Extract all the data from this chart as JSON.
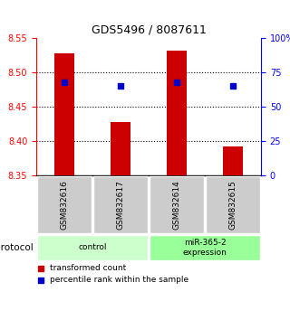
{
  "title": "GDS5496 / 8087611",
  "samples": [
    "GSM832616",
    "GSM832617",
    "GSM832614",
    "GSM832615"
  ],
  "bar_values": [
    8.528,
    8.428,
    8.532,
    8.392
  ],
  "percentile_values": [
    68,
    65,
    68,
    65
  ],
  "ylim_left": [
    8.35,
    8.55
  ],
  "ylim_right": [
    0,
    100
  ],
  "yticks_left": [
    8.35,
    8.4,
    8.45,
    8.5,
    8.55
  ],
  "yticks_right": [
    0,
    25,
    50,
    75,
    100
  ],
  "bar_color": "#cc0000",
  "percentile_color": "#0000cc",
  "bar_bottom": 8.35,
  "grid_lines": [
    8.4,
    8.45,
    8.5
  ],
  "protocols": [
    {
      "label": "control",
      "samples": [
        0,
        1
      ],
      "color": "#ccffcc"
    },
    {
      "label": "miR-365-2\nexpression",
      "samples": [
        2,
        3
      ],
      "color": "#99ff99"
    }
  ],
  "legend_bar_label": "transformed count",
  "legend_pct_label": "percentile rank within the sample",
  "protocol_label": "protocol",
  "sample_bg_color": "#cccccc",
  "figure_bg": "#ffffff"
}
